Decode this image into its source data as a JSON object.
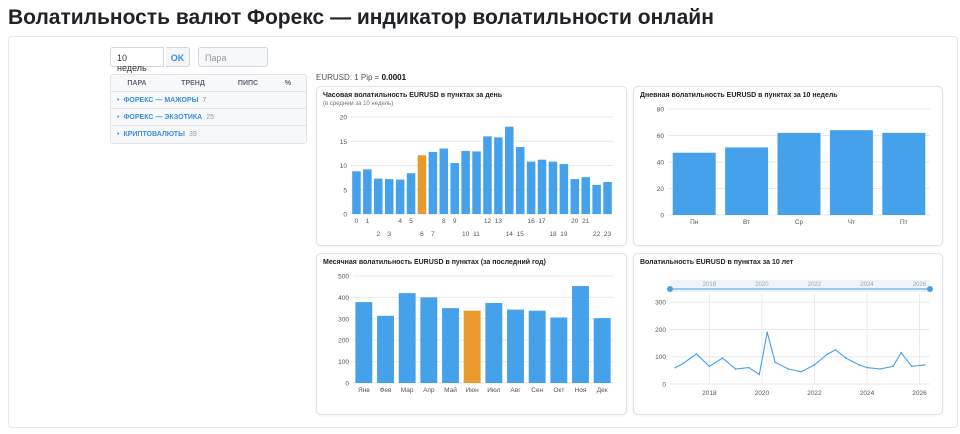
{
  "page": {
    "title": "Волатильность валют Форекс — индикатор волатильности онлайн"
  },
  "controls": {
    "period_value": "10 недель",
    "ok_label": "OK",
    "pair_placeholder": "Пара"
  },
  "pairs_table": {
    "headers": [
      "ПАРА",
      "ТРЕНД",
      "ПИПС",
      "%"
    ],
    "groups": [
      {
        "label": "ФОРЕКС — МАЖОРЫ",
        "count": "7"
      },
      {
        "label": "ФОРЕКС — ЭКЗОТИКА",
        "count": "25"
      },
      {
        "label": "КРИПТОВАЛЮТЫ",
        "count": "39"
      }
    ]
  },
  "pip_info": {
    "prefix": "EURUSD: 1 Pip = ",
    "value": "0.0001"
  },
  "colors": {
    "bar": "#45a1ea",
    "highlight": "#e89a2c",
    "grid": "#e8eaed",
    "axis_text": "#555"
  },
  "chart_data": [
    {
      "type": "bar",
      "title": "Часовая волатильность EURUSD в пунктах за день",
      "subtitle": "(в среднем за 10 недель)",
      "categories": [
        "0",
        "1",
        "2",
        "3",
        "4",
        "5",
        "6",
        "7",
        "8",
        "9",
        "10",
        "11",
        "12",
        "13",
        "14",
        "15",
        "16",
        "17",
        "18",
        "19",
        "20",
        "21",
        "22",
        "23"
      ],
      "values": [
        8.8,
        9.2,
        7.3,
        7.2,
        7.1,
        8.4,
        12.1,
        12.8,
        13.5,
        10.5,
        13.0,
        12.9,
        16.0,
        15.8,
        18.0,
        13.8,
        10.8,
        11.2,
        10.8,
        10.3,
        7.2,
        7.6,
        6.0,
        6.6
      ],
      "highlight_index": 6,
      "ylim": [
        0,
        20
      ],
      "yticks": [
        0,
        5,
        10,
        15,
        20
      ]
    },
    {
      "type": "bar",
      "title": "Дневная волатильность EURUSD в пунктах за 10 недель",
      "categories": [
        "Пн",
        "Вт",
        "Ср",
        "Чт",
        "Пт"
      ],
      "values": [
        47,
        51,
        62,
        64,
        62
      ],
      "ylim": [
        0,
        80
      ],
      "yticks": [
        0,
        20,
        40,
        60,
        80
      ]
    },
    {
      "type": "bar",
      "title": "Месячная волатильность EURUSD в пунктах (за последний год)",
      "categories": [
        "Янв",
        "Фев",
        "Мар",
        "Апр",
        "Май",
        "Июн",
        "Июл",
        "Авг",
        "Сен",
        "Окт",
        "Ноя",
        "Дек"
      ],
      "values": [
        378,
        314,
        420,
        400,
        350,
        338,
        374,
        343,
        338,
        306,
        453,
        303
      ],
      "highlight_index": 5,
      "ylim": [
        0,
        500
      ],
      "yticks": [
        0,
        100,
        200,
        300,
        400,
        500
      ]
    },
    {
      "type": "line",
      "title": "Волатильность EURUSD в пунктах за 10 лет",
      "x_ticks": [
        "2018",
        "2020",
        "2022",
        "2024",
        "2026"
      ],
      "navigator_ticks": [
        "2018",
        "2020",
        "2022",
        "2024",
        "2026"
      ],
      "ylim": [
        0,
        330
      ],
      "yticks": [
        0,
        100,
        200,
        300
      ],
      "x": [
        2016.7,
        2017.0,
        2017.5,
        2018.0,
        2018.5,
        2019.0,
        2019.5,
        2019.9,
        2020.2,
        2020.5,
        2021.0,
        2021.5,
        2022.0,
        2022.5,
        2022.8,
        2023.2,
        2023.7,
        2024.0,
        2024.5,
        2025.0,
        2025.3,
        2025.7,
        2026.2
      ],
      "values": [
        60,
        75,
        110,
        65,
        95,
        55,
        60,
        35,
        190,
        80,
        55,
        45,
        70,
        110,
        125,
        95,
        70,
        60,
        55,
        65,
        115,
        65,
        70
      ]
    }
  ]
}
